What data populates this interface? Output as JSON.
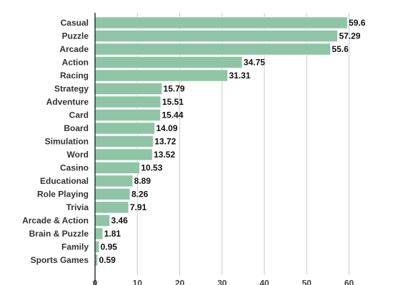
{
  "chart_data": {
    "type": "bar",
    "orientation": "horizontal",
    "title": "",
    "xlabel": "",
    "ylabel": "",
    "categories": [
      "Casual",
      "Puzzle",
      "Arcade",
      "Action",
      "Racing",
      "Strategy",
      "Adventure",
      "Card",
      "Board",
      "Simulation",
      "Word",
      "Casino",
      "Educational",
      "Role Playing",
      "Trivia",
      "Arcade & Action",
      "Brain & Puzzle",
      "Family",
      "Sports Games"
    ],
    "values": [
      59.6,
      57.29,
      55.6,
      34.75,
      31.31,
      15.79,
      15.51,
      15.44,
      14.09,
      13.72,
      13.52,
      10.53,
      8.89,
      8.26,
      7.91,
      3.46,
      1.81,
      0.95,
      0.59
    ],
    "value_labels": [
      "59.6",
      "57.29",
      "55.6",
      "34.75",
      "31.31",
      "15.79",
      "15.51",
      "15.44",
      "14.09",
      "13.72",
      "13.52",
      "10.53",
      "8.89",
      "8.26",
      "7.91",
      "3.46",
      "1.81",
      "0.95",
      "0.59"
    ],
    "xlim": [
      0,
      65
    ],
    "x_ticks": [
      0,
      10,
      20,
      30,
      40,
      50,
      60
    ],
    "x_tick_labels": [
      "0",
      "10",
      "20",
      "30",
      "40",
      "50",
      "60"
    ],
    "grid": true,
    "legend": "none",
    "bar_color": "#8fc5a6"
  }
}
